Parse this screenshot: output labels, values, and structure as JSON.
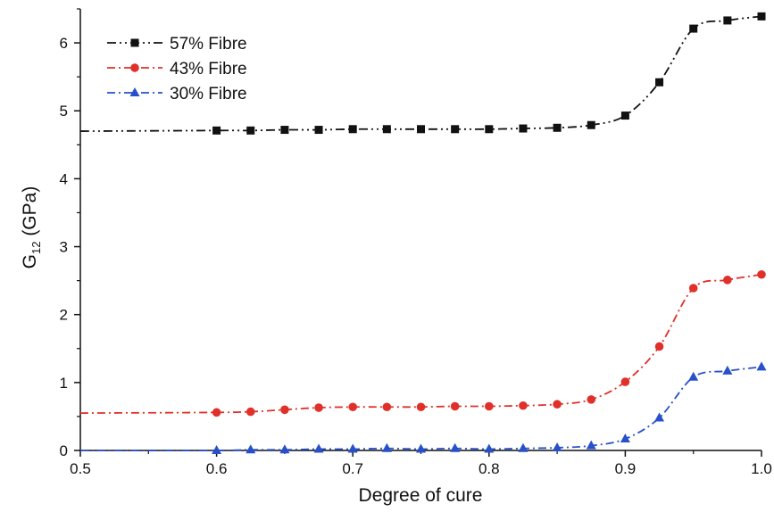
{
  "chart_data": {
    "type": "line",
    "xlabel": "Degree of cure",
    "ylabel_main": "G",
    "ylabel_sub": "12",
    "ylabel_unit": " (GPa)",
    "xlim": [
      0.5,
      1.0
    ],
    "ylim": [
      0,
      6.5
    ],
    "xticks": [
      "0.5",
      "0.6",
      "0.7",
      "0.8",
      "0.9",
      "1.0"
    ],
    "xtick_values": [
      0.5,
      0.6,
      0.7,
      0.8,
      0.9,
      1.0
    ],
    "yticks": [
      "0",
      "1",
      "2",
      "3",
      "4",
      "5",
      "6"
    ],
    "ytick_values": [
      0,
      1,
      2,
      3,
      4,
      5,
      6
    ],
    "grid": false,
    "legend_position": "top-left",
    "x": [
      0.5,
      0.6,
      0.625,
      0.65,
      0.675,
      0.7,
      0.725,
      0.75,
      0.775,
      0.8,
      0.825,
      0.85,
      0.875,
      0.9,
      0.925,
      0.95,
      0.975,
      1.0
    ],
    "series": [
      {
        "name": "57% Fibre",
        "color": "#111111",
        "marker": "square",
        "values": [
          4.7,
          4.71,
          4.71,
          4.72,
          4.72,
          4.73,
          4.73,
          4.73,
          4.73,
          4.73,
          4.74,
          4.75,
          4.79,
          4.93,
          5.42,
          6.21,
          6.33,
          6.39
        ]
      },
      {
        "name": "43% Fibre",
        "color": "#e0302a",
        "marker": "circle",
        "values": [
          0.55,
          0.56,
          0.57,
          0.6,
          0.63,
          0.64,
          0.64,
          0.64,
          0.65,
          0.65,
          0.66,
          0.68,
          0.75,
          1.01,
          1.53,
          2.39,
          2.51,
          2.59
        ]
      },
      {
        "name": "30% Fibre",
        "color": "#2850c8",
        "marker": "triangle",
        "values": [
          0.0,
          0.0,
          0.01,
          0.01,
          0.02,
          0.02,
          0.03,
          0.02,
          0.03,
          0.02,
          0.03,
          0.04,
          0.07,
          0.17,
          0.48,
          1.08,
          1.17,
          1.23
        ]
      }
    ]
  }
}
